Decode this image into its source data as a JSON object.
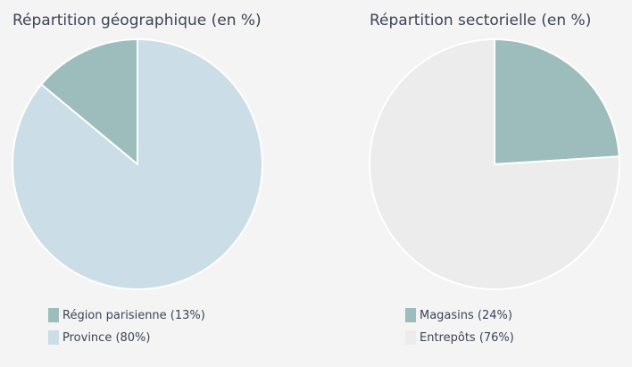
{
  "chart_data": [
    {
      "type": "pie",
      "title": "Répartition géographique (en %)",
      "start_angle_deg": 0,
      "direction": "counterclockwise",
      "slices": [
        {
          "label": "Région parisienne (13%)",
          "value": 13,
          "color": "#9dbdbc"
        },
        {
          "label": "Province (80%)",
          "value": 80,
          "color": "#cbdde7"
        }
      ]
    },
    {
      "type": "pie",
      "title": "Répartition sectorielle (en %)",
      "start_angle_deg": 0,
      "direction": "clockwise",
      "slices": [
        {
          "label": "Magasins (24%)",
          "value": 24,
          "color": "#9dbdbc"
        },
        {
          "label": "Entrepôts (76%)",
          "value": 76,
          "color": "#ececec"
        }
      ]
    }
  ]
}
